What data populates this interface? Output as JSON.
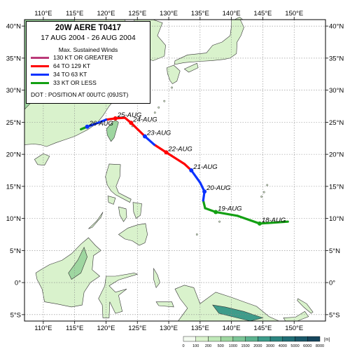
{
  "map": {
    "lon_labels": [
      "110°E",
      "115°E",
      "120°E",
      "125°E",
      "130°E",
      "135°E",
      "140°E",
      "145°E",
      "150°E"
    ],
    "lat_labels": [
      "40°N",
      "35°N",
      "30°N",
      "25°N",
      "20°N",
      "15°N",
      "10°N",
      "5°N",
      "0°",
      "5°S"
    ],
    "colors": {
      "ocean": "#ffffff",
      "land_low": "#d9f2cc",
      "land_mid": "#9ed6a0",
      "land_high": "#3d9c8a",
      "grid": "#888888",
      "cat_130": "#bb3a78",
      "cat_64": "#ff0000",
      "cat_34": "#0a32ff",
      "cat_33": "#13a013"
    }
  },
  "legend": {
    "title": "20W  AERE  T0417",
    "dates": "17 AUG 2004 - 26 AUG 2004",
    "heading": "Max. Sustained Winds",
    "rows": [
      {
        "label": "130 KT OR GREATER",
        "color": "#bb3a78"
      },
      {
        "label": "64 TO 129 KT",
        "color": "#ff0000"
      },
      {
        "label": "34 TO 63 KT",
        "color": "#0a32ff"
      },
      {
        "label": "33 KT OR LESS",
        "color": "#13a013"
      }
    ],
    "dot_note": "DOT : POSITION AT 00UTC (09JST)"
  },
  "track": {
    "points": [
      {
        "lon": 149.0,
        "lat": 9.5,
        "cat": "33"
      },
      {
        "lon": 144.5,
        "lat": 9.2,
        "cat": "33"
      },
      {
        "lon": 141.0,
        "lat": 10.4,
        "cat": "33"
      },
      {
        "lon": 137.5,
        "lat": 11.0,
        "cat": "33"
      },
      {
        "lon": 135.8,
        "lat": 11.6,
        "cat": "33"
      },
      {
        "lon": 135.5,
        "lat": 12.8,
        "cat": "33"
      },
      {
        "lon": 135.7,
        "lat": 14.2,
        "cat": "34"
      },
      {
        "lon": 135.0,
        "lat": 15.6,
        "cat": "34"
      },
      {
        "lon": 133.6,
        "lat": 17.5,
        "cat": "34"
      },
      {
        "lon": 132.5,
        "lat": 18.5,
        "cat": "64"
      },
      {
        "lon": 129.6,
        "lat": 20.3,
        "cat": "64"
      },
      {
        "lon": 127.7,
        "lat": 21.5,
        "cat": "64"
      },
      {
        "lon": 126.2,
        "lat": 22.8,
        "cat": "34"
      },
      {
        "lon": 124.0,
        "lat": 24.9,
        "cat": "64"
      },
      {
        "lon": 123.0,
        "lat": 25.7,
        "cat": "64"
      },
      {
        "lon": 121.5,
        "lat": 25.6,
        "cat": "64"
      },
      {
        "lon": 120.0,
        "lat": 25.4,
        "cat": "64"
      },
      {
        "lon": 119.0,
        "lat": 25.0,
        "cat": "34"
      },
      {
        "lon": 117.0,
        "lat": 24.3,
        "cat": "34"
      },
      {
        "lon": 116.0,
        "lat": 23.9,
        "cat": "33"
      }
    ],
    "daily": [
      {
        "label": "18-AUG",
        "lon": 144.5,
        "lat": 9.2
      },
      {
        "label": "19-AUG",
        "lon": 137.5,
        "lat": 11.0
      },
      {
        "label": "20-AUG",
        "lon": 135.7,
        "lat": 14.2
      },
      {
        "label": "21-AUG",
        "lon": 133.6,
        "lat": 17.5
      },
      {
        "label": "22-AUG",
        "lon": 129.6,
        "lat": 20.3
      },
      {
        "label": "23-AUG",
        "lon": 126.2,
        "lat": 22.8
      },
      {
        "label": "24-AUG",
        "lon": 124.0,
        "lat": 24.9
      },
      {
        "label": "25-AUG",
        "lon": 121.5,
        "lat": 25.6
      },
      {
        "label": "26-AUG",
        "lon": 117.0,
        "lat": 24.3
      }
    ]
  },
  "colorbar": {
    "ticks": [
      "0",
      "100",
      "200",
      "500",
      "1000",
      "1500",
      "2000",
      "3000",
      "4000",
      "5000",
      "6000",
      "8000"
    ],
    "unit": "[m]"
  }
}
